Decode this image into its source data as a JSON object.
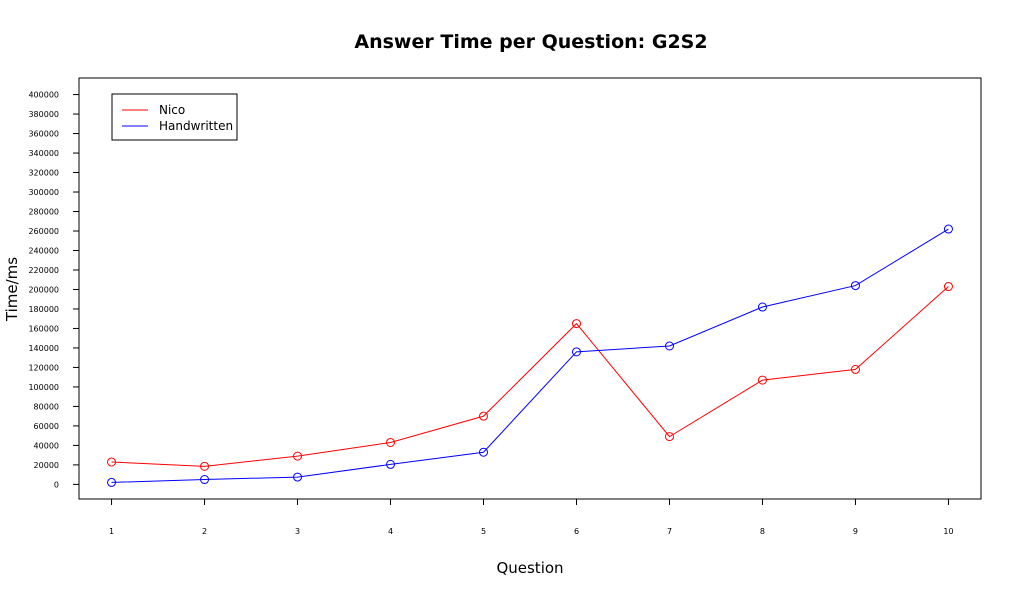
{
  "chart_data": {
    "type": "line",
    "title": "Answer Time per Question: G2S2",
    "xlabel": "Question",
    "ylabel": "Time/ms",
    "x": [
      1,
      2,
      3,
      4,
      5,
      6,
      7,
      8,
      9,
      10
    ],
    "xlim": [
      0.65,
      10.35
    ],
    "ylim": [
      -15000,
      417000
    ],
    "yticks": [
      0,
      20000,
      40000,
      60000,
      80000,
      100000,
      120000,
      140000,
      160000,
      180000,
      200000,
      220000,
      240000,
      260000,
      280000,
      300000,
      320000,
      340000,
      360000,
      380000,
      400000
    ],
    "grid": false,
    "legend_position": "top-left",
    "series": [
      {
        "name": "Nico",
        "color": "#ff0000",
        "values": [
          23000,
          18500,
          29000,
          43000,
          70000,
          165000,
          49000,
          107000,
          118000,
          203000
        ]
      },
      {
        "name": "Handwritten",
        "color": "#0000ff",
        "values": [
          2000,
          5000,
          7500,
          20500,
          33000,
          136000,
          142000,
          182000,
          204000,
          262000
        ]
      }
    ]
  }
}
